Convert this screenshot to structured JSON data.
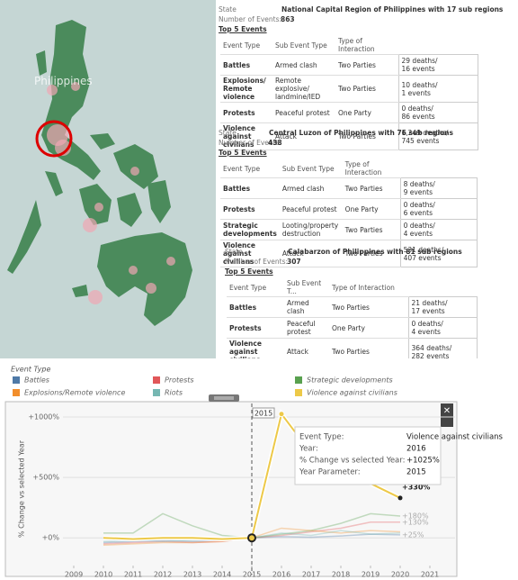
{
  "map": {
    "label": "Philippines"
  },
  "cards": [
    {
      "state_label": "State",
      "title": "National Capital Region of Philippines with 17 sub regions",
      "events_label": "Number of Events:",
      "events": 863,
      "top_label": "Top 5 Events",
      "header": [
        "Event Type",
        "Sub Event Type",
        "Type of Interaction"
      ],
      "rows": [
        [
          "Battles",
          "Armed clash",
          "Two Parties",
          "29 deaths/",
          "16 events"
        ],
        [
          "Explosions/ Remote violence",
          "Remote explosive/ landmine/IED",
          "Two Parties",
          "10 deaths/",
          "1 events"
        ],
        [
          "Protests",
          "Peaceful protest",
          "One Party",
          "0 deaths/",
          "86 events"
        ],
        [
          "Violence against civilians",
          "Attack",
          "Two Parties",
          "1,249 deaths/",
          "745 events"
        ]
      ]
    },
    {
      "state_label": "State",
      "title": "Central Luzon of Philippines with 76 sub regions",
      "events_label": "Number of Events:",
      "events": 438,
      "top_label": "Top 5 Events",
      "header": [
        "Event Type",
        "Sub Event Type",
        "Type of Interaction"
      ],
      "rows": [
        [
          "Battles",
          "Armed clash",
          "Two Parties",
          "8 deaths/",
          "9 events"
        ],
        [
          "Protests",
          "Peaceful protest",
          "One Party",
          "0 deaths/",
          "6 events"
        ],
        [
          "Strategic developments",
          "Looting/property destruction",
          "Two Parties",
          "0 deaths/",
          "4 events"
        ],
        [
          "Violence against civilians",
          "Attack",
          "Two Parties",
          "531 deaths/",
          "407 events"
        ]
      ]
    },
    {
      "state_label": "State",
      "title": "Calabarzon of Philippines with 81 sub regions",
      "events_label": "Number of Events:",
      "events": 307,
      "top_label": "Top 5 Events",
      "header": [
        "Event Type",
        "Sub Event T...",
        "Type of Interaction"
      ],
      "rows": [
        [
          "Battles",
          "Armed clash",
          "Two Parties",
          "21 deaths/",
          "17 events"
        ],
        [
          "Protests",
          "Peaceful protest",
          "One Party",
          "0 deaths/",
          "4 events"
        ],
        [
          "Violence against civilians",
          "Attack",
          "Two Parties",
          "364 deaths/",
          "282 events"
        ]
      ]
    }
  ],
  "chart_data": {
    "type": "line",
    "legend_title": "Event Type",
    "y_label": "% Change vs selected Year",
    "x": [
      2010,
      2011,
      2012,
      2013,
      2014,
      2015,
      2016,
      2017,
      2018,
      2019,
      2020
    ],
    "xlim": [
      2009,
      2021
    ],
    "xticks": [
      2009,
      2010,
      2011,
      2012,
      2013,
      2014,
      2015,
      2016,
      2017,
      2018,
      2019,
      2020,
      2021
    ],
    "ylim": [
      -170,
      1060
    ],
    "yticks": [
      {
        "value": 0,
        "label": "+0%"
      },
      {
        "value": 500,
        "label": "+500%"
      },
      {
        "value": 1000,
        "label": "+1000%"
      }
    ],
    "reference_x": 2015,
    "series": [
      {
        "name": "Battles",
        "color": "#4e79a7",
        "values": [
          -40,
          -30,
          -20,
          -30,
          -20,
          0,
          10,
          5,
          15,
          30,
          25
        ],
        "value_labels": [
          null,
          null,
          null,
          null,
          null,
          null,
          null,
          null,
          null,
          null,
          "+25%"
        ]
      },
      {
        "name": "Protests",
        "color": "#e15759",
        "values": [
          -50,
          -40,
          -30,
          -40,
          -30,
          0,
          20,
          50,
          80,
          130,
          130
        ],
        "value_labels": [
          null,
          null,
          null,
          null,
          null,
          null,
          null,
          null,
          null,
          null,
          "+130%"
        ]
      },
      {
        "name": "Strategic developments",
        "color": "#59a14f",
        "values": [
          40,
          40,
          200,
          100,
          20,
          0,
          30,
          60,
          120,
          200,
          180
        ],
        "value_labels": [
          null,
          null,
          null,
          null,
          null,
          null,
          null,
          null,
          null,
          null,
          "+180%"
        ]
      },
      {
        "name": "Explosions/Remote violence",
        "color": "#f28e2b",
        "values": [
          -60,
          -50,
          -40,
          -40,
          -30,
          0,
          80,
          60,
          40,
          60,
          50
        ]
      },
      {
        "name": "Riots",
        "color": "#76b7b2",
        "values": [
          -30,
          -20,
          -30,
          -20,
          -10,
          0,
          40,
          20,
          60,
          30,
          40
        ]
      },
      {
        "name": "Violence against civilians",
        "color": "#edc948",
        "values": [
          0,
          -10,
          0,
          0,
          -10,
          0,
          1025,
          700,
          600,
          450,
          330
        ],
        "value_labels": [
          null,
          null,
          null,
          null,
          null,
          null,
          null,
          null,
          null,
          null,
          "+330%"
        ]
      }
    ],
    "tooltip": {
      "event_type_label": "Event Type:",
      "event_type": "Violence against civilians",
      "year_label": "Year:",
      "year": 2016,
      "change_label": "% Change vs selected Year:",
      "change": "+1025%",
      "param_label": "Year Parameter:",
      "param": 2015
    }
  }
}
